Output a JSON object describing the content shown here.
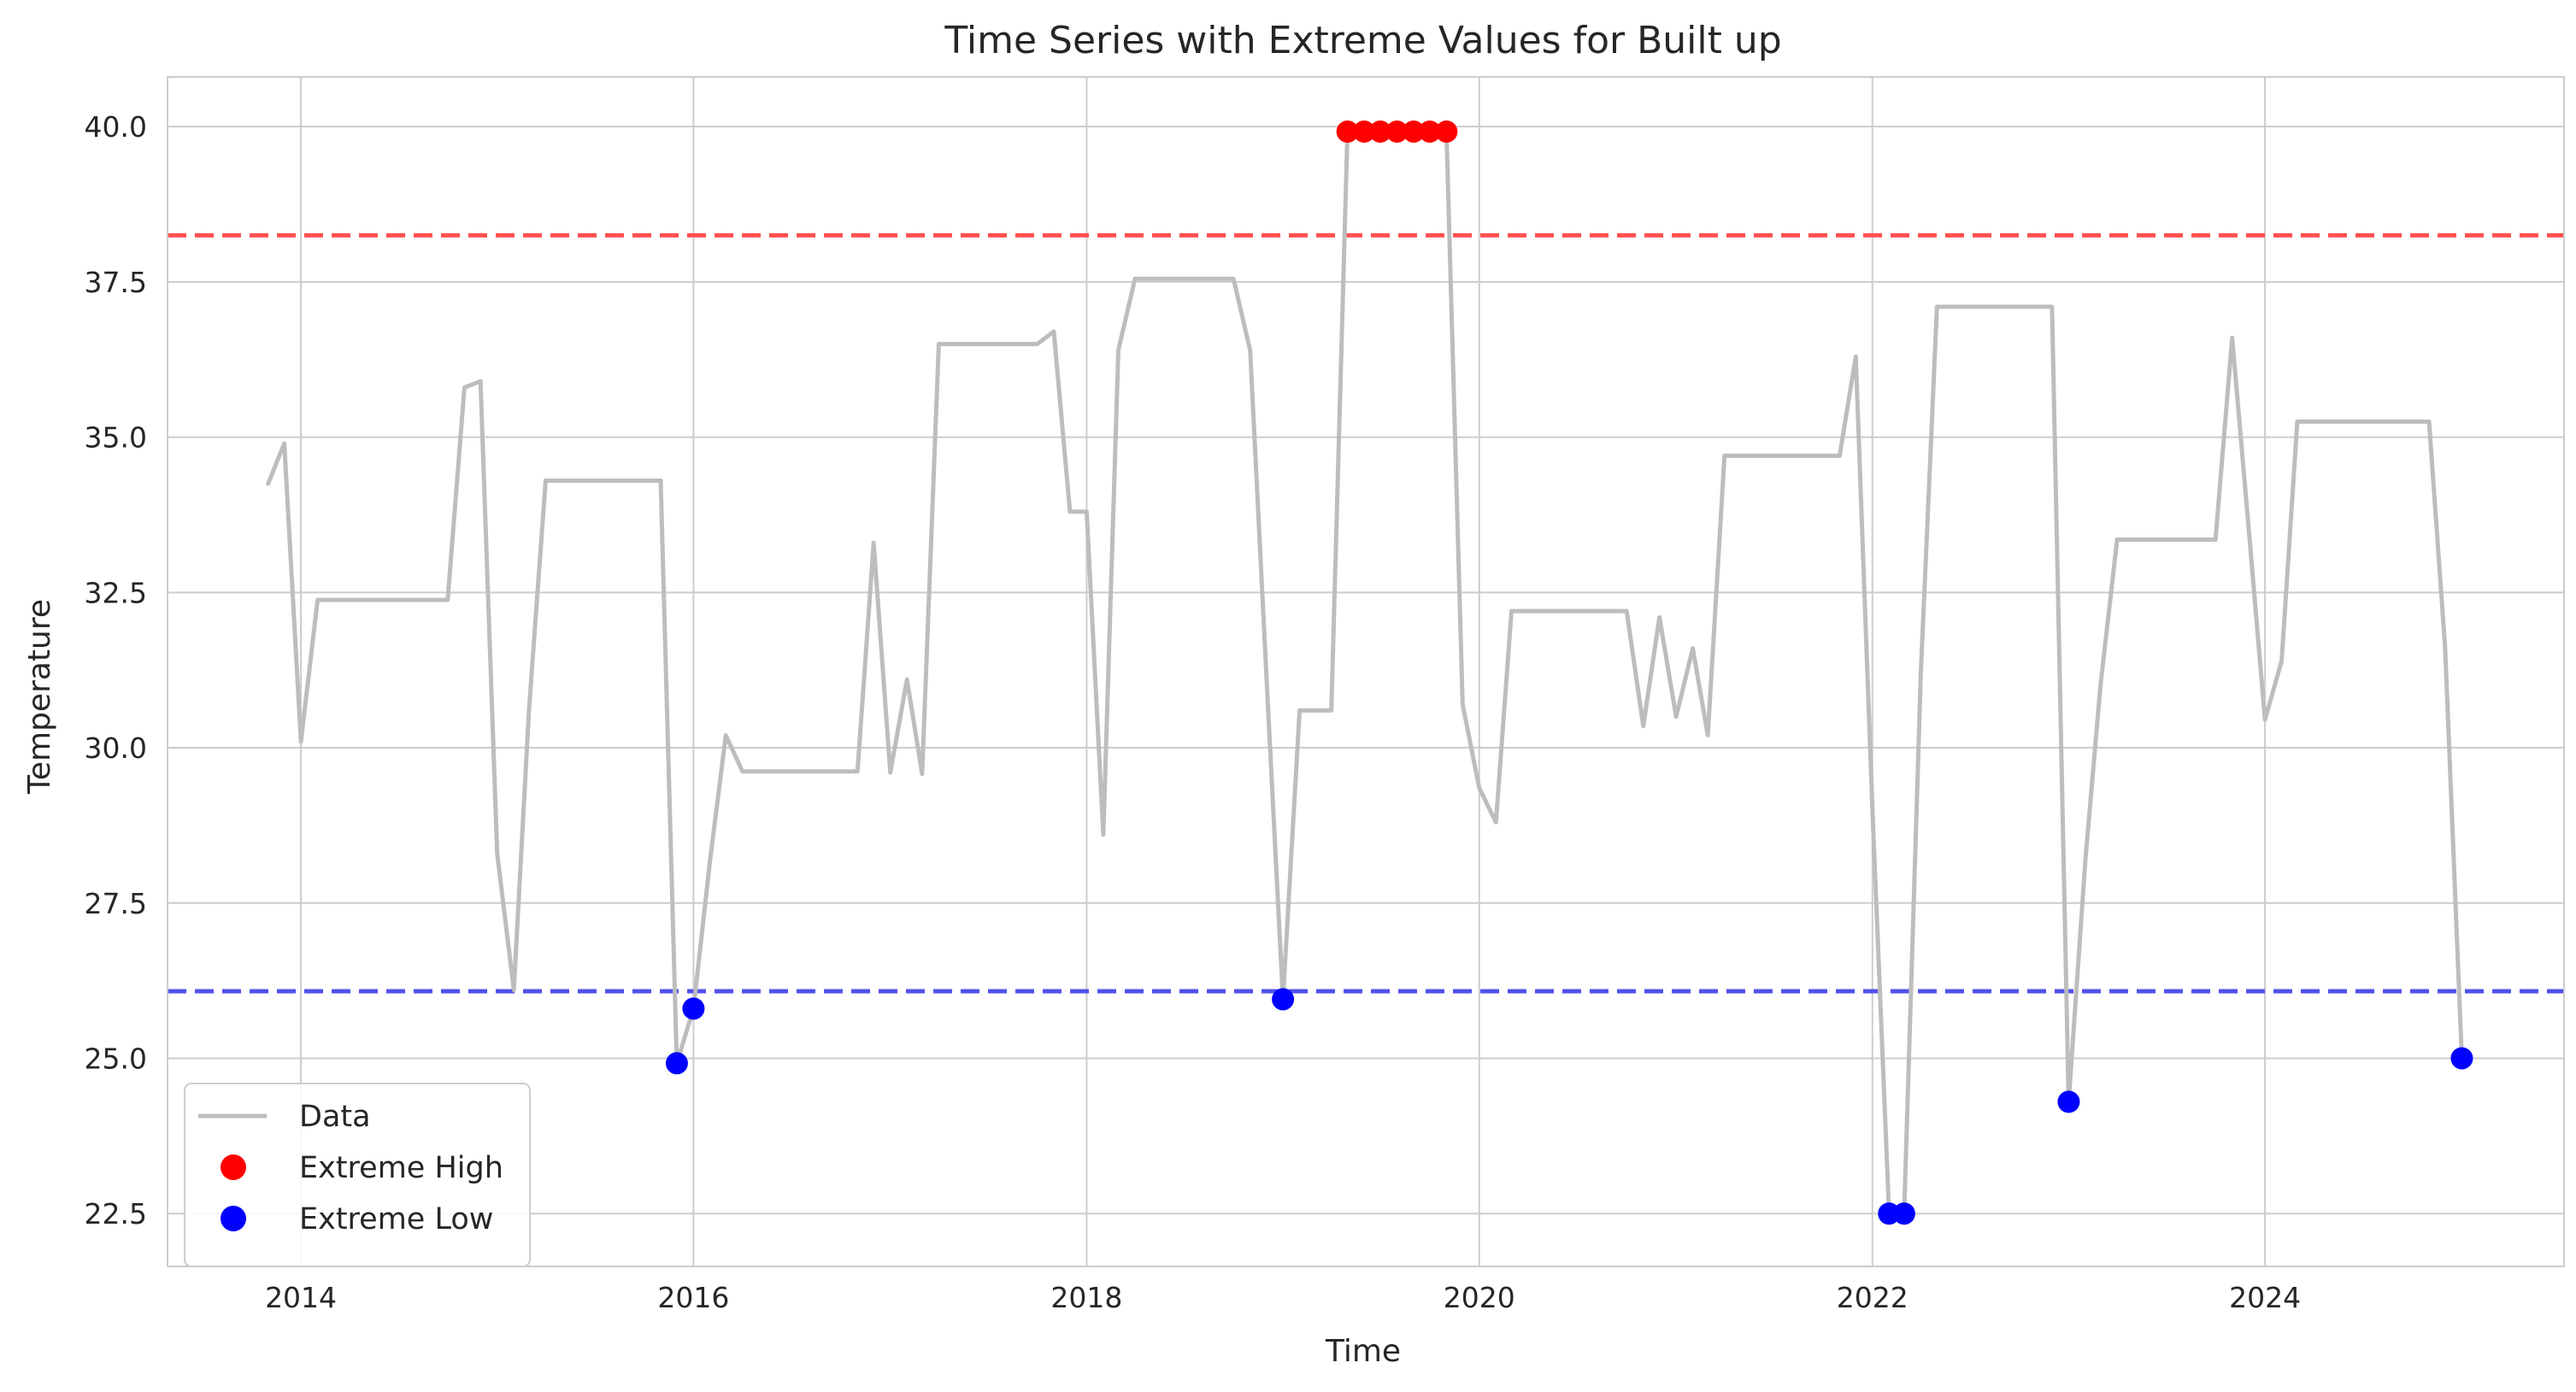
{
  "chart_data": {
    "type": "line",
    "title": "Time Series with Extreme Values for Built up",
    "xlabel": "Time",
    "ylabel": "Temperature",
    "xlim": [
      "2013-04-28",
      "2025-07-10"
    ],
    "ylim": [
      21.65,
      40.8
    ],
    "x_ticks": [
      "2014",
      "2016",
      "2018",
      "2020",
      "2022",
      "2024"
    ],
    "y_ticks": [
      "22.5",
      "25.0",
      "27.5",
      "30.0",
      "32.5",
      "35.0",
      "37.5",
      "40.0"
    ],
    "grid": true,
    "legend_position": "lower-left",
    "series": [
      {
        "name": "Data",
        "color": "#bdbdbd",
        "points": [
          [
            "2013-11-01",
            34.25
          ],
          [
            "2013-12-01",
            34.9
          ],
          [
            "2014-01-01",
            30.1
          ],
          [
            "2014-02-01",
            32.38
          ],
          [
            "2014-10-01",
            32.38
          ],
          [
            "2014-11-01",
            35.8
          ],
          [
            "2014-12-01",
            35.9
          ],
          [
            "2015-01-01",
            28.3
          ],
          [
            "2015-02-01",
            26.1
          ],
          [
            "2015-03-01",
            30.6
          ],
          [
            "2015-04-01",
            34.3
          ],
          [
            "2015-11-01",
            34.3
          ],
          [
            "2015-12-01",
            24.92
          ],
          [
            "2016-01-01",
            25.8
          ],
          [
            "2016-02-01",
            28.2
          ],
          [
            "2016-03-01",
            30.2
          ],
          [
            "2016-04-01",
            29.62
          ],
          [
            "2016-11-01",
            29.62
          ],
          [
            "2016-12-01",
            33.3
          ],
          [
            "2017-01-01",
            29.6
          ],
          [
            "2017-02-01",
            31.1
          ],
          [
            "2017-03-01",
            29.58
          ],
          [
            "2017-04-01",
            36.5
          ],
          [
            "2017-10-01",
            36.5
          ],
          [
            "2017-11-01",
            36.7
          ],
          [
            "2017-12-01",
            33.8
          ],
          [
            "2018-01-01",
            33.8
          ],
          [
            "2018-02-01",
            28.6
          ],
          [
            "2018-03-01",
            36.4
          ],
          [
            "2018-04-01",
            37.55
          ],
          [
            "2018-10-01",
            37.55
          ],
          [
            "2018-11-01",
            36.4
          ],
          [
            "2018-12-01",
            31.2
          ],
          [
            "2019-01-01",
            25.95
          ],
          [
            "2019-02-01",
            30.6
          ],
          [
            "2019-04-01",
            30.6
          ],
          [
            "2019-05-01",
            39.92
          ],
          [
            "2019-06-01",
            39.92
          ],
          [
            "2019-07-01",
            39.92
          ],
          [
            "2019-08-01",
            39.92
          ],
          [
            "2019-09-01",
            39.92
          ],
          [
            "2019-10-01",
            39.92
          ],
          [
            "2019-11-01",
            39.92
          ],
          [
            "2019-12-01",
            30.7
          ],
          [
            "2020-01-01",
            29.35
          ],
          [
            "2020-02-01",
            28.8
          ],
          [
            "2020-03-01",
            32.2
          ],
          [
            "2020-10-01",
            32.2
          ],
          [
            "2020-11-01",
            30.35
          ],
          [
            "2020-12-01",
            32.1
          ],
          [
            "2021-01-01",
            30.5
          ],
          [
            "2021-02-01",
            31.6
          ],
          [
            "2021-03-01",
            30.2
          ],
          [
            "2021-04-01",
            34.7
          ],
          [
            "2021-11-01",
            34.7
          ],
          [
            "2021-12-01",
            36.3
          ],
          [
            "2022-01-01",
            29.0
          ],
          [
            "2022-02-01",
            22.5
          ],
          [
            "2022-03-01",
            22.5
          ],
          [
            "2022-04-01",
            31.2
          ],
          [
            "2022-05-01",
            37.1
          ],
          [
            "2022-12-01",
            37.1
          ],
          [
            "2023-01-01",
            24.3
          ],
          [
            "2023-02-01",
            28.2
          ],
          [
            "2023-03-01",
            31.0
          ],
          [
            "2023-04-01",
            33.35
          ],
          [
            "2023-10-01",
            33.35
          ],
          [
            "2023-11-01",
            36.6
          ],
          [
            "2023-12-01",
            33.6
          ],
          [
            "2024-01-01",
            30.45
          ],
          [
            "2024-02-01",
            31.4
          ],
          [
            "2024-03-01",
            35.25
          ],
          [
            "2024-11-01",
            35.25
          ],
          [
            "2024-12-01",
            31.6
          ],
          [
            "2025-01-01",
            25.0
          ]
        ]
      },
      {
        "name": "Extreme High",
        "color": "#ff0000",
        "points": [
          [
            "2019-05-01",
            39.92
          ],
          [
            "2019-06-01",
            39.92
          ],
          [
            "2019-07-01",
            39.92
          ],
          [
            "2019-08-01",
            39.92
          ],
          [
            "2019-09-01",
            39.92
          ],
          [
            "2019-10-01",
            39.92
          ],
          [
            "2019-11-01",
            39.92
          ]
        ]
      },
      {
        "name": "Extreme Low",
        "color": "#0000ff",
        "points": [
          [
            "2015-12-01",
            24.92
          ],
          [
            "2016-01-01",
            25.8
          ],
          [
            "2019-01-01",
            25.95
          ],
          [
            "2022-02-01",
            22.5
          ],
          [
            "2022-03-01",
            22.5
          ],
          [
            "2023-01-01",
            24.3
          ],
          [
            "2025-01-01",
            25.0
          ]
        ]
      }
    ],
    "reference_lines": [
      {
        "y": 38.25,
        "color": "#ff5050",
        "style": "dashed"
      },
      {
        "y": 26.08,
        "color": "#5050ee",
        "style": "dashed"
      }
    ]
  }
}
